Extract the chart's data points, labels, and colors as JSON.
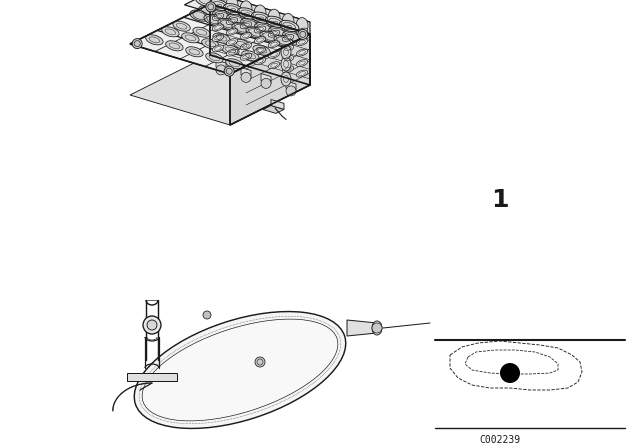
{
  "background_color": "#ffffff",
  "part_number_label": "1",
  "diagram_code": "C002239",
  "line_color": "#1a1a1a",
  "lw": 0.8
}
